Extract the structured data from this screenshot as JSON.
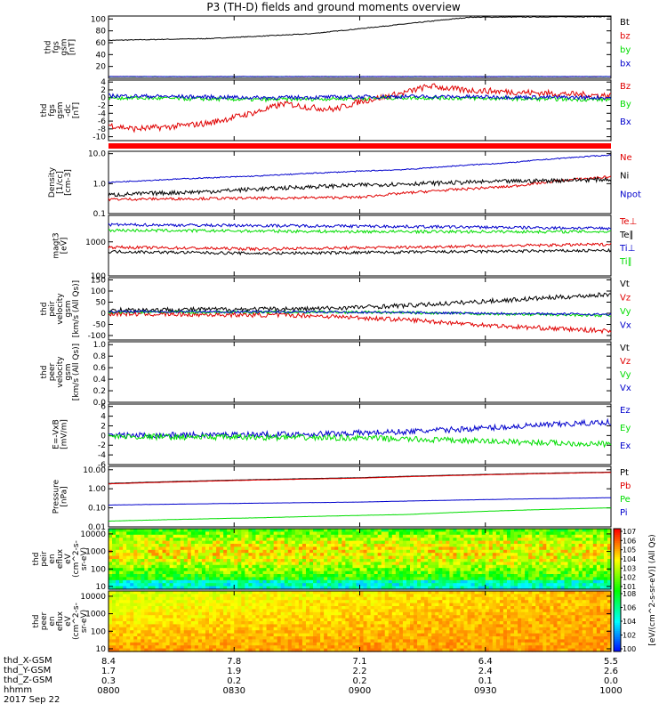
{
  "title": "P3 (TH-D) fields and ground moments overview",
  "colors": {
    "black": "#000000",
    "red": "#e00000",
    "green": "#00dd00",
    "blue": "#0000cc",
    "dark": "#101010"
  },
  "chart_data": [
    {
      "type": "line",
      "id": "fgs_mag",
      "ylabel": [
        "thd",
        "fgs",
        "gsm",
        "[nT]"
      ],
      "yticks": [
        "100",
        "80",
        "60",
        "40",
        "20"
      ],
      "ylim": [
        0,
        105
      ],
      "log": false,
      "series": [
        {
          "name": "Bt",
          "color": "black",
          "pts": [
            [
              0,
              64
            ],
            [
              0.2,
              67
            ],
            [
              0.4,
              75
            ],
            [
              0.55,
              88
            ],
            [
              0.65,
              97
            ],
            [
              0.72,
              103
            ],
            [
              1,
              104
            ]
          ],
          "noise": 0.6
        },
        {
          "name": "bz",
          "color": "red",
          "pts": [
            [
              0,
              3
            ],
            [
              1,
              3
            ]
          ],
          "noise": 0.2
        },
        {
          "name": "by",
          "color": "green",
          "pts": [
            [
              0,
              3
            ],
            [
              1,
              3
            ]
          ],
          "noise": 0.2
        },
        {
          "name": "bx",
          "color": "blue",
          "pts": [
            [
              0,
              3
            ],
            [
              1,
              3
            ]
          ],
          "noise": 0.2
        }
      ]
    },
    {
      "type": "line",
      "id": "fgs_dc",
      "ylabel": [
        "thd",
        "fgs",
        "gsm",
        "-dc",
        "[nT]"
      ],
      "yticks": [
        "4",
        "2",
        "0",
        "-2",
        "-4",
        "-6",
        "-8",
        "-10"
      ],
      "ylim": [
        -11,
        4.5
      ],
      "log": false,
      "series": [
        {
          "name": "Bz",
          "color": "red",
          "pts": [
            [
              0,
              -7
            ],
            [
              0.05,
              -8
            ],
            [
              0.12,
              -7.5
            ],
            [
              0.2,
              -6.5
            ],
            [
              0.25,
              -5
            ],
            [
              0.3,
              -3.5
            ],
            [
              0.35,
              -1.5
            ],
            [
              0.4,
              -2.5
            ],
            [
              0.45,
              -3
            ],
            [
              0.5,
              -1
            ],
            [
              0.58,
              1
            ],
            [
              0.64,
              3
            ],
            [
              0.7,
              2
            ],
            [
              0.8,
              1.5
            ],
            [
              0.9,
              1
            ],
            [
              1,
              0.5
            ]
          ],
          "noise": 0.8
        },
        {
          "name": "By",
          "color": "green",
          "pts": [
            [
              0,
              0
            ],
            [
              0.3,
              -0.5
            ],
            [
              0.6,
              0
            ],
            [
              1,
              -0.5
            ]
          ],
          "noise": 0.5
        },
        {
          "name": "Bx",
          "color": "blue",
          "pts": [
            [
              0,
              0.5
            ],
            [
              0.3,
              0
            ],
            [
              0.6,
              0.3
            ],
            [
              1,
              0
            ]
          ],
          "noise": 0.5
        }
      ]
    },
    {
      "type": "line",
      "id": "density",
      "ylabel": [
        "Density",
        "[1/cc]",
        "[cm-3]"
      ],
      "yticks": [
        "10.0",
        "1.0",
        "0.1"
      ],
      "ylim": [
        0.1,
        12
      ],
      "log": true,
      "series": [
        {
          "name": "Ne",
          "color": "red",
          "pts": [
            [
              0,
              0.3
            ],
            [
              0.5,
              0.35
            ],
            [
              0.8,
              0.8
            ],
            [
              1,
              1.7
            ]
          ],
          "noise": 0.05
        },
        {
          "name": "Ni",
          "color": "black",
          "pts": [
            [
              0,
              0.42
            ],
            [
              0.2,
              0.55
            ],
            [
              0.5,
              0.9
            ],
            [
              0.7,
              1.1
            ],
            [
              1,
              1.4
            ]
          ],
          "noise": 0.08
        },
        {
          "name": "Npot",
          "color": "blue",
          "pts": [
            [
              0,
              1.1
            ],
            [
              0.3,
              1.8
            ],
            [
              0.6,
              3
            ],
            [
              0.8,
              5
            ],
            [
              1,
              9
            ]
          ],
          "noise": 0.02
        }
      ]
    },
    {
      "type": "line",
      "id": "temp",
      "ylabel": [
        "magt3",
        "[eV]"
      ],
      "yticks": [
        "1000",
        "100"
      ],
      "ylim": [
        100,
        6000
      ],
      "log": true,
      "series": [
        {
          "name": "Te⊥",
          "color": "red",
          "pts": [
            [
              0,
              700
            ],
            [
              0.3,
              620
            ],
            [
              0.6,
              700
            ],
            [
              1,
              850
            ]
          ],
          "noise": 0.05
        },
        {
          "name": "Te∥",
          "color": "black",
          "pts": [
            [
              0,
              520
            ],
            [
              0.3,
              460
            ],
            [
              0.6,
              500
            ],
            [
              1,
              560
            ]
          ],
          "noise": 0.05
        },
        {
          "name": "Ti⊥",
          "color": "blue",
          "pts": [
            [
              0,
              3200
            ],
            [
              0.5,
              2900
            ],
            [
              1,
              2500
            ]
          ],
          "noise": 0.05
        },
        {
          "name": "Ti∥",
          "color": "green",
          "pts": [
            [
              0,
              2200
            ],
            [
              0.5,
              2000
            ],
            [
              1,
              2000
            ]
          ],
          "noise": 0.05
        }
      ]
    },
    {
      "type": "line",
      "id": "peir_vel",
      "ylabel": [
        "thd",
        "peir",
        "velocity",
        "gsm",
        "[km/s (All Qs)]"
      ],
      "yticks": [
        "150",
        "100",
        "50",
        "0",
        "-50",
        "-100"
      ],
      "ylim": [
        -120,
        160
      ],
      "log": false,
      "series": [
        {
          "name": "Vt",
          "color": "black",
          "pts": [
            [
              0,
              15
            ],
            [
              0.4,
              20
            ],
            [
              0.6,
              35
            ],
            [
              0.8,
              60
            ],
            [
              1,
              85
            ]
          ],
          "noise": 10
        },
        {
          "name": "Vz",
          "color": "red",
          "pts": [
            [
              0,
              -2
            ],
            [
              0.4,
              -10
            ],
            [
              0.6,
              -30
            ],
            [
              0.8,
              -60
            ],
            [
              1,
              -80
            ]
          ],
          "noise": 10
        },
        {
          "name": "Vy",
          "color": "green",
          "pts": [
            [
              0,
              5
            ],
            [
              0.5,
              5
            ],
            [
              1,
              -10
            ]
          ],
          "noise": 6
        },
        {
          "name": "Vx",
          "color": "blue",
          "pts": [
            [
              0,
              8
            ],
            [
              0.5,
              5
            ],
            [
              1,
              -5
            ]
          ],
          "noise": 5
        }
      ]
    },
    {
      "type": "line",
      "id": "peer_vel",
      "ylabel": [
        "thd",
        "peer",
        "velocity",
        "gsm",
        "[km/s (All Qs)]"
      ],
      "yticks": [
        "1.0",
        "0.8",
        "0.6",
        "0.4",
        "0.2",
        "0.0"
      ],
      "ylim": [
        0,
        1.05
      ],
      "log": false,
      "series": [
        {
          "name": "Vt",
          "color": "black",
          "pts": [],
          "noise": 0
        },
        {
          "name": "Vz",
          "color": "red",
          "pts": [],
          "noise": 0
        },
        {
          "name": "Vy",
          "color": "green",
          "pts": [],
          "noise": 0
        },
        {
          "name": "Vx",
          "color": "blue",
          "pts": [],
          "noise": 0
        }
      ]
    },
    {
      "type": "line",
      "id": "efield",
      "ylabel": [
        "E=-VxB",
        "[mV/m]"
      ],
      "yticks": [
        "6",
        "4",
        "2",
        "0",
        "-2",
        "-4",
        "-6"
      ],
      "ylim": [
        -6,
        6.5
      ],
      "log": false,
      "series": [
        {
          "name": "Ez",
          "color": "blue",
          "pts": [
            [
              0,
              0
            ],
            [
              0.4,
              0.3
            ],
            [
              0.6,
              0.8
            ],
            [
              0.8,
              1.8
            ],
            [
              1,
              2.8
            ]
          ],
          "noise": 0.6
        },
        {
          "name": "Ey",
          "color": "green",
          "pts": [
            [
              0,
              -0.2
            ],
            [
              0.5,
              -0.5
            ],
            [
              0.8,
              -1.3
            ],
            [
              1,
              -1.8
            ]
          ],
          "noise": 0.6
        },
        {
          "name": "Ex",
          "color": "blue",
          "pts": [],
          "noise": 0
        }
      ]
    },
    {
      "type": "line",
      "id": "pressure",
      "ylabel": [
        "Pressure",
        "[nPa]"
      ],
      "yticks": [
        "10.00",
        "1.00",
        "0.10",
        "0.01"
      ],
      "ylim": [
        0.01,
        15
      ],
      "log": true,
      "series": [
        {
          "name": "Pt",
          "color": "black",
          "pts": [
            [
              0,
              1.9
            ],
            [
              0.5,
              3.8
            ],
            [
              1,
              7.5
            ]
          ],
          "noise": 0.005
        },
        {
          "name": "Pb",
          "color": "red",
          "pts": [
            [
              0,
              1.8
            ],
            [
              0.5,
              3.6
            ],
            [
              1,
              7.2
            ]
          ],
          "noise": 0.005
        },
        {
          "name": "Pe",
          "color": "green",
          "pts": [
            [
              0,
              0.02
            ],
            [
              0.3,
              0.03
            ],
            [
              0.6,
              0.045
            ],
            [
              1,
              0.1
            ]
          ],
          "noise": 0.005
        },
        {
          "name": "Pi",
          "color": "blue",
          "pts": [
            [
              0,
              0.14
            ],
            [
              0.5,
              0.2
            ],
            [
              1,
              0.34
            ]
          ],
          "noise": 0.005
        }
      ]
    },
    {
      "type": "heatmap",
      "id": "peir_en",
      "ylabel": [
        "thd",
        "peir",
        "en",
        "eflux",
        "eV",
        "(cm^2-s-",
        "sr-eV)"
      ],
      "yticks": [
        "10000",
        "1000",
        "100",
        "10"
      ],
      "ylim": [
        7,
        20000
      ],
      "log": true
    },
    {
      "type": "heatmap",
      "id": "peer_en",
      "ylabel": [
        "thd",
        "peer",
        "en",
        "eflux",
        "eV",
        "(cm^2-s-",
        "sr-eV)"
      ],
      "yticks": [
        "10000",
        "1000",
        "100",
        "10"
      ],
      "ylim": [
        7,
        20000
      ],
      "log": true
    }
  ],
  "colorbar": {
    "label": "[eV/(cm^2-s-sr-eV)] (All Qs)",
    "ticks_top": [
      "10^7",
      "10^6",
      "10^5",
      "10^4",
      "10^3",
      "10^2",
      "10^1"
    ],
    "ticks_bottom": [
      "10^8",
      "10^6",
      "10^4",
      "10^2",
      "10^0"
    ]
  },
  "x_axis": {
    "ticks": [
      "0800",
      "0830",
      "0900",
      "0930",
      "1000"
    ],
    "rows": [
      {
        "label": "thd_X-GSM",
        "values": [
          "8.4",
          "7.8",
          "7.1",
          "6.4",
          "5.5"
        ]
      },
      {
        "label": "thd_Y-GSM",
        "values": [
          "1.7",
          "1.9",
          "2.2",
          "2.4",
          "2.6"
        ]
      },
      {
        "label": "thd_Z-GSM",
        "values": [
          "0.3",
          "0.2",
          "0.2",
          "0.1",
          "0.0"
        ]
      },
      {
        "label": "hhmm",
        "values": [
          "0800",
          "0830",
          "0900",
          "0930",
          "1000"
        ]
      }
    ],
    "date": "2017 Sep 22"
  }
}
